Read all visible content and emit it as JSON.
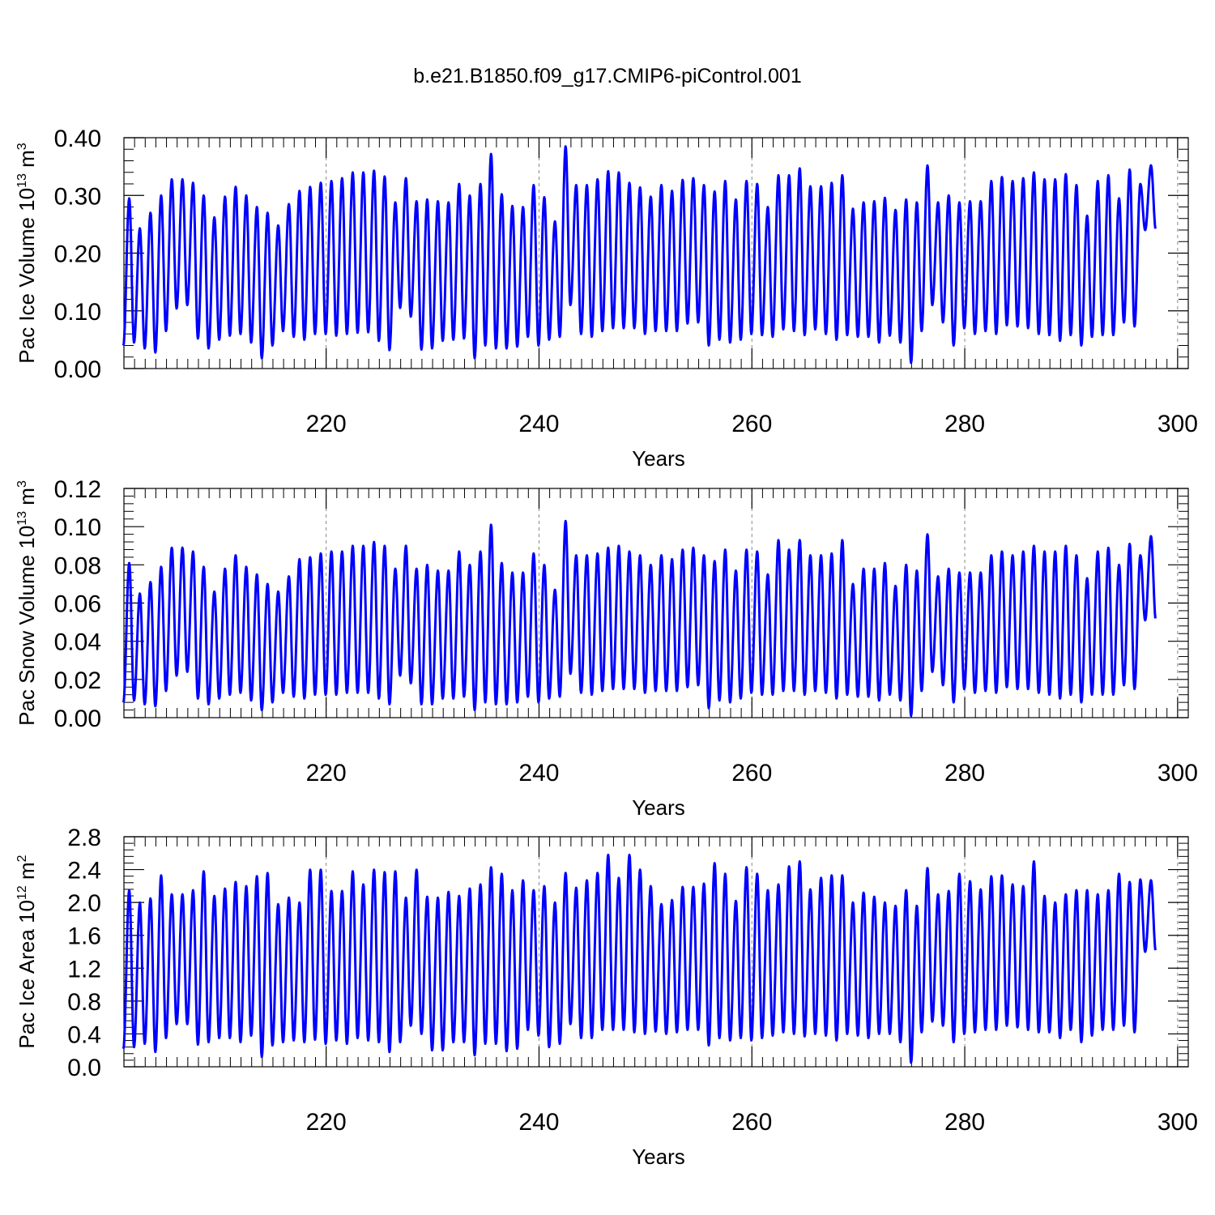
{
  "figure": {
    "title": "b.e21.B1850.f09_g17.CMIP6-piControl.001"
  },
  "style": {
    "series_color": "#0000ff",
    "frame_color": "#000000",
    "grid_color": "#888888"
  },
  "chart_data": [
    {
      "type": "line",
      "title": "",
      "xlabel": "Years",
      "ylabel_main": "Pac Ice Volume 10",
      "ylabel_exp": "13",
      "ylabel_unit": " m",
      "ylabel_unit_exp": "3",
      "xlim": [
        201,
        301
      ],
      "ylim": [
        0.0,
        0.4
      ],
      "yticks": [
        "0.00",
        "0.10",
        "0.20",
        "0.30",
        "0.40"
      ],
      "ytick_values": [
        0.0,
        0.1,
        0.2,
        0.3,
        0.4
      ],
      "xticks": [
        "220",
        "240",
        "260",
        "280",
        "300"
      ],
      "xtick_values": [
        220,
        240,
        260,
        280,
        300
      ],
      "grid": "vertical dashed at major x ticks",
      "series": [
        {
          "seasonal": "annual cycle, winter maximum / summer minimum",
          "year_start": 201,
          "year_end": 300,
          "annual_max": [
            0.295,
            0.243,
            0.27,
            0.3,
            0.328,
            0.328,
            0.322,
            0.3,
            0.262,
            0.298,
            0.315,
            0.3,
            0.28,
            0.27,
            0.248,
            0.285,
            0.308,
            0.315,
            0.322,
            0.325,
            0.33,
            0.34,
            0.34,
            0.343,
            0.333,
            0.288,
            0.33,
            0.29,
            0.293,
            0.29,
            0.288,
            0.32,
            0.3,
            0.32,
            0.372,
            0.302,
            0.282,
            0.28,
            0.318,
            0.297,
            0.255,
            0.385,
            0.318,
            0.318,
            0.328,
            0.342,
            0.34,
            0.322,
            0.314,
            0.298,
            0.318,
            0.308,
            0.327,
            0.33,
            0.318,
            0.307,
            0.325,
            0.293,
            0.325,
            0.32,
            0.28,
            0.335,
            0.335,
            0.347,
            0.316,
            0.316,
            0.322,
            0.335,
            0.277,
            0.288,
            0.29,
            0.296,
            0.275,
            0.293,
            0.288,
            0.352,
            0.288,
            0.3,
            0.288,
            0.29,
            0.29,
            0.325,
            0.332,
            0.325,
            0.33,
            0.34,
            0.328,
            0.328,
            0.337,
            0.318,
            0.265,
            0.325,
            0.335,
            0.295,
            0.345,
            0.32,
            0.352
          ],
          "annual_min": [
            0.04,
            0.045,
            0.035,
            0.028,
            0.065,
            0.104,
            0.11,
            0.052,
            0.035,
            0.05,
            0.057,
            0.06,
            0.045,
            0.018,
            0.04,
            0.065,
            0.055,
            0.05,
            0.06,
            0.06,
            0.057,
            0.06,
            0.062,
            0.063,
            0.048,
            0.032,
            0.105,
            0.09,
            0.033,
            0.035,
            0.048,
            0.05,
            0.052,
            0.018,
            0.04,
            0.035,
            0.035,
            0.038,
            0.055,
            0.04,
            0.05,
            0.055,
            0.11,
            0.06,
            0.055,
            0.065,
            0.07,
            0.07,
            0.07,
            0.06,
            0.065,
            0.065,
            0.065,
            0.078,
            0.08,
            0.04,
            0.05,
            0.045,
            0.05,
            0.06,
            0.058,
            0.055,
            0.068,
            0.065,
            0.058,
            0.068,
            0.06,
            0.05,
            0.058,
            0.055,
            0.055,
            0.045,
            0.057,
            0.045,
            0.01,
            0.065,
            0.11,
            0.08,
            0.04,
            0.07,
            0.06,
            0.065,
            0.06,
            0.075,
            0.073,
            0.07,
            0.06,
            0.058,
            0.048,
            0.058,
            0.04,
            0.055,
            0.058,
            0.058,
            0.08,
            0.073,
            0.24
          ]
        }
      ]
    },
    {
      "type": "line",
      "title": "",
      "xlabel": "Years",
      "ylabel_main": "Pac Snow Volume 10",
      "ylabel_exp": "13",
      "ylabel_unit": " m",
      "ylabel_unit_exp": "3",
      "xlim": [
        201,
        301
      ],
      "ylim": [
        0.0,
        0.12
      ],
      "yticks": [
        "0.00",
        "0.02",
        "0.04",
        "0.06",
        "0.08",
        "0.10",
        "0.12"
      ],
      "ytick_values": [
        0.0,
        0.02,
        0.04,
        0.06,
        0.08,
        0.1,
        0.12
      ],
      "xticks": [
        "220",
        "240",
        "260",
        "280",
        "300"
      ],
      "xtick_values": [
        220,
        240,
        260,
        280,
        300
      ],
      "grid": "vertical dashed at major x ticks",
      "series": [
        {
          "seasonal": "annual cycle, winter maximum / summer minimum",
          "year_start": 201,
          "year_end": 300,
          "annual_max": [
            0.081,
            0.065,
            0.071,
            0.079,
            0.089,
            0.089,
            0.087,
            0.079,
            0.066,
            0.078,
            0.085,
            0.079,
            0.075,
            0.07,
            0.066,
            0.074,
            0.083,
            0.084,
            0.086,
            0.087,
            0.087,
            0.09,
            0.09,
            0.092,
            0.09,
            0.078,
            0.09,
            0.078,
            0.08,
            0.077,
            0.077,
            0.087,
            0.08,
            0.087,
            0.101,
            0.081,
            0.076,
            0.076,
            0.086,
            0.08,
            0.067,
            0.103,
            0.085,
            0.085,
            0.086,
            0.089,
            0.09,
            0.087,
            0.085,
            0.08,
            0.085,
            0.083,
            0.088,
            0.089,
            0.085,
            0.082,
            0.088,
            0.077,
            0.088,
            0.087,
            0.075,
            0.093,
            0.088,
            0.093,
            0.085,
            0.085,
            0.086,
            0.093,
            0.07,
            0.078,
            0.078,
            0.081,
            0.069,
            0.08,
            0.077,
            0.096,
            0.074,
            0.078,
            0.076,
            0.076,
            0.076,
            0.085,
            0.087,
            0.085,
            0.087,
            0.09,
            0.087,
            0.087,
            0.09,
            0.085,
            0.073,
            0.087,
            0.089,
            0.08,
            0.091,
            0.085,
            0.095
          ],
          "annual_min": [
            0.008,
            0.009,
            0.007,
            0.006,
            0.014,
            0.022,
            0.024,
            0.01,
            0.007,
            0.01,
            0.012,
            0.013,
            0.009,
            0.004,
            0.008,
            0.013,
            0.011,
            0.01,
            0.012,
            0.012,
            0.012,
            0.013,
            0.013,
            0.013,
            0.01,
            0.007,
            0.022,
            0.018,
            0.007,
            0.007,
            0.01,
            0.01,
            0.011,
            0.004,
            0.008,
            0.007,
            0.007,
            0.008,
            0.011,
            0.008,
            0.01,
            0.011,
            0.023,
            0.013,
            0.012,
            0.014,
            0.015,
            0.015,
            0.015,
            0.013,
            0.014,
            0.014,
            0.014,
            0.016,
            0.017,
            0.005,
            0.009,
            0.008,
            0.01,
            0.013,
            0.012,
            0.012,
            0.014,
            0.014,
            0.012,
            0.014,
            0.013,
            0.01,
            0.012,
            0.011,
            0.011,
            0.009,
            0.012,
            0.009,
            0.001,
            0.014,
            0.024,
            0.017,
            0.008,
            0.015,
            0.013,
            0.014,
            0.013,
            0.016,
            0.015,
            0.015,
            0.013,
            0.012,
            0.01,
            0.012,
            0.008,
            0.012,
            0.012,
            0.012,
            0.017,
            0.015,
            0.051
          ]
        }
      ]
    },
    {
      "type": "line",
      "title": "",
      "xlabel": "Years",
      "ylabel_main": "Pac Ice Area 10",
      "ylabel_exp": "12",
      "ylabel_unit": " m",
      "ylabel_unit_exp": "2",
      "xlim": [
        201,
        301
      ],
      "ylim": [
        0.0,
        2.8
      ],
      "yticks": [
        "0.0",
        "0.4",
        "0.8",
        "1.2",
        "1.6",
        "2.0",
        "2.4",
        "2.8"
      ],
      "ytick_values": [
        0.0,
        0.4,
        0.8,
        1.2,
        1.6,
        2.0,
        2.4,
        2.8
      ],
      "xticks": [
        "220",
        "240",
        "260",
        "280",
        "300"
      ],
      "xtick_values": [
        220,
        240,
        260,
        280,
        300
      ],
      "grid": "vertical dashed at major x ticks",
      "series": [
        {
          "seasonal": "annual cycle, winter maximum / summer minimum",
          "year_start": 201,
          "year_end": 300,
          "annual_max": [
            2.15,
            2.0,
            2.05,
            2.33,
            2.1,
            2.1,
            2.15,
            2.38,
            2.08,
            2.17,
            2.25,
            2.2,
            2.32,
            2.36,
            1.98,
            2.06,
            2.0,
            2.4,
            2.4,
            2.14,
            2.14,
            2.38,
            2.22,
            2.4,
            2.37,
            2.38,
            2.06,
            2.4,
            2.07,
            2.06,
            2.13,
            2.08,
            2.17,
            2.22,
            2.43,
            2.35,
            2.15,
            2.27,
            2.15,
            2.2,
            2.0,
            2.36,
            2.18,
            2.27,
            2.36,
            2.58,
            2.3,
            2.58,
            2.4,
            2.2,
            1.98,
            2.03,
            2.19,
            2.19,
            2.23,
            2.48,
            2.35,
            2.02,
            2.43,
            2.35,
            2.15,
            2.22,
            2.44,
            2.5,
            2.16,
            2.3,
            2.33,
            2.33,
            2.0,
            2.12,
            2.07,
            2.0,
            1.96,
            2.15,
            1.96,
            2.42,
            2.1,
            2.14,
            2.35,
            2.26,
            2.16,
            2.32,
            2.33,
            2.22,
            2.2,
            2.5,
            2.08,
            2.0,
            2.1,
            2.15,
            2.15,
            2.1,
            2.15,
            2.35,
            2.25,
            2.28,
            2.27
          ],
          "annual_min": [
            0.22,
            0.24,
            0.28,
            0.18,
            0.35,
            0.52,
            0.52,
            0.27,
            0.3,
            0.35,
            0.35,
            0.3,
            0.38,
            0.12,
            0.26,
            0.3,
            0.32,
            0.3,
            0.33,
            0.28,
            0.32,
            0.28,
            0.35,
            0.32,
            0.3,
            0.18,
            0.3,
            0.5,
            0.4,
            0.2,
            0.2,
            0.3,
            0.3,
            0.14,
            0.28,
            0.28,
            0.19,
            0.22,
            0.45,
            0.38,
            0.24,
            0.28,
            0.52,
            0.35,
            0.35,
            0.45,
            0.45,
            0.45,
            0.42,
            0.4,
            0.43,
            0.4,
            0.42,
            0.45,
            0.45,
            0.26,
            0.35,
            0.32,
            0.35,
            0.32,
            0.35,
            0.38,
            0.42,
            0.4,
            0.37,
            0.4,
            0.38,
            0.32,
            0.4,
            0.38,
            0.35,
            0.4,
            0.4,
            0.3,
            0.05,
            0.42,
            0.55,
            0.5,
            0.3,
            0.4,
            0.42,
            0.45,
            0.45,
            0.5,
            0.48,
            0.45,
            0.42,
            0.42,
            0.35,
            0.45,
            0.3,
            0.38,
            0.45,
            0.45,
            0.5,
            0.42,
            1.4
          ]
        }
      ]
    }
  ]
}
